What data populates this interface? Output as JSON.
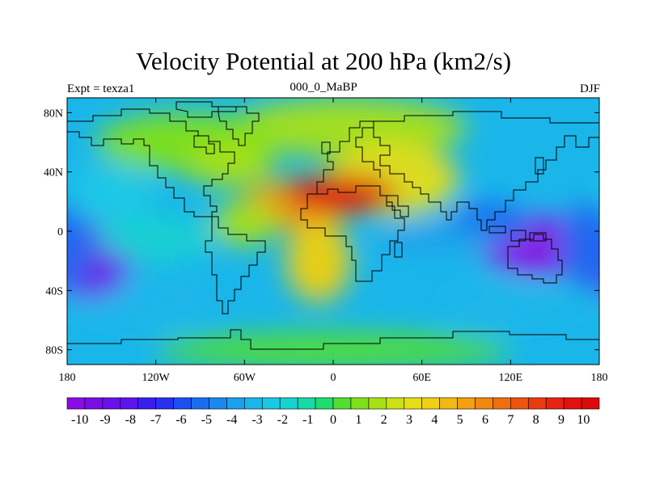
{
  "title": "Velocity Potential at 200 hPa (km2/s)",
  "subtitle_left": "Expt = texza1",
  "subtitle_center": "000_0_MaBP",
  "subtitle_right": "DJF",
  "lon_ticks": [
    "180",
    "120W",
    "60W",
    "0",
    "60E",
    "120E",
    "180"
  ],
  "lat_ticks": [
    "80N",
    "40N",
    "0",
    "40S",
    "80S"
  ],
  "colorbar": {
    "labels": [
      "-10",
      "-9",
      "-8",
      "-7",
      "-6",
      "-5",
      "-4",
      "-3",
      "-2",
      "-1",
      "0",
      "1",
      "2",
      "3",
      "4",
      "5",
      "6",
      "7",
      "8",
      "9",
      "10"
    ],
    "colors": [
      "#8a0be6",
      "#7a0ce8",
      "#6a10ea",
      "#5a14ec",
      "#3a1ef0",
      "#2a30f2",
      "#1c4ef2",
      "#1c6cf0",
      "#1a88ee",
      "#1aa0ec",
      "#1ab6ea",
      "#1ac8e6",
      "#18d2d0",
      "#18d8a6",
      "#1edc70",
      "#52de30",
      "#80e018",
      "#a8e016",
      "#cce014",
      "#e6de14",
      "#f0d012",
      "#f2ba10",
      "#f2a010",
      "#f08810",
      "#ee6e10",
      "#ec5410",
      "#ea3a10",
      "#e82210",
      "#e41010",
      "#dc0a0a"
    ]
  },
  "field_blobs": [
    {
      "lon": 5,
      "lat": 25,
      "value": 10.5,
      "rlon": 38,
      "rlat": 13
    },
    {
      "lon": -25,
      "lat": 18,
      "value": 5,
      "rlon": 38,
      "rlat": 17
    },
    {
      "lon": 40,
      "lat": 35,
      "value": 3,
      "rlon": 45,
      "rlat": 25
    },
    {
      "lon": -10,
      "lat": -20,
      "value": 4,
      "rlon": 22,
      "rlat": 28
    },
    {
      "lon": 10,
      "lat": 70,
      "value": 1.5,
      "rlon": 80,
      "rlat": 20
    },
    {
      "lon": -100,
      "lat": 60,
      "value": 1,
      "rlon": 60,
      "rlat": 20
    },
    {
      "lon": -70,
      "lat": 45,
      "value": 1.5,
      "rlon": 30,
      "rlat": 15
    },
    {
      "lon": -60,
      "lat": 5,
      "value": 1.5,
      "rlon": 22,
      "rlat": 15
    },
    {
      "lon": -165,
      "lat": -20,
      "value": -9,
      "rlon": 28,
      "rlat": 25
    },
    {
      "lon": 175,
      "lat": -10,
      "value": -5,
      "rlon": 22,
      "rlat": 30
    },
    {
      "lon": 140,
      "lat": -10,
      "value": -10.5,
      "rlon": 40,
      "rlat": 20
    },
    {
      "lon": 70,
      "lat": -5,
      "value": -4,
      "rlon": 40,
      "rlat": 10
    },
    {
      "lon": 105,
      "lat": 5,
      "value": -5,
      "rlon": 28,
      "rlat": 15
    },
    {
      "lon": -150,
      "lat": 25,
      "value": -2.5,
      "rlon": 30,
      "rlat": 20
    },
    {
      "lon": -130,
      "lat": -45,
      "value": -3,
      "rlon": 50,
      "rlat": 20
    },
    {
      "lon": 120,
      "lat": -50,
      "value": -3,
      "rlon": 50,
      "rlat": 15
    },
    {
      "lon": -120,
      "lat": -5,
      "value": -2,
      "rlon": 40,
      "rlat": 15
    },
    {
      "lon": 0,
      "lat": -80,
      "value": 0.5,
      "rlon": 120,
      "rlat": 12
    }
  ]
}
